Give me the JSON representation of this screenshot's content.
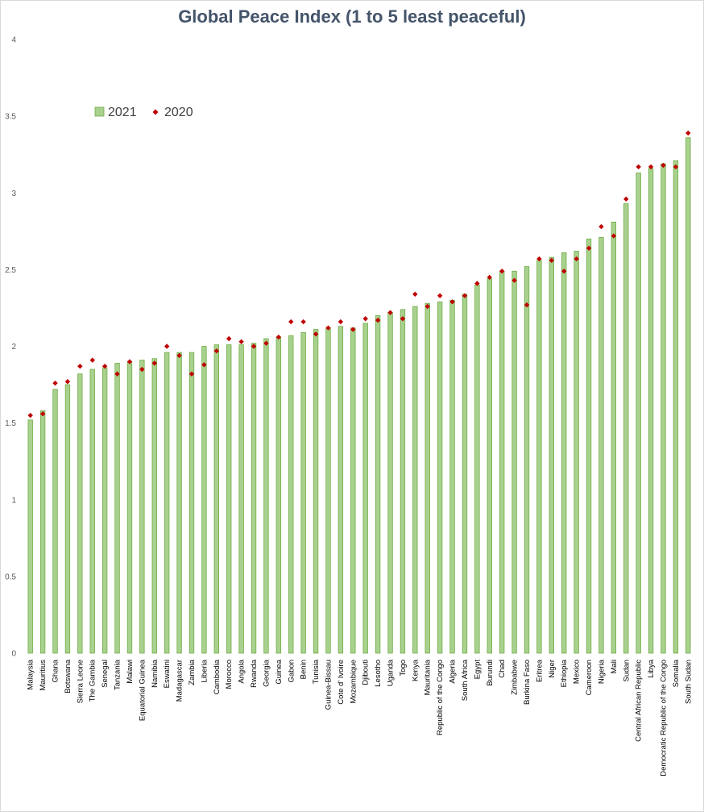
{
  "chart_data": {
    "type": "bar",
    "title": "Global Peace Index (1 to 5 least peaceful)",
    "xlabel": "",
    "ylabel": "",
    "ylim": [
      0,
      4
    ],
    "yticks": [
      "0",
      "0.5",
      "1",
      "1.5",
      "2",
      "2.5",
      "3",
      "3.5",
      "4"
    ],
    "grid": false,
    "legend_position": "top-left",
    "colors": {
      "bar_fill": "#a9d18e",
      "bar_stroke": "#70ad47",
      "marker": "#c00000"
    },
    "categories": [
      "Malaysia",
      "Mauritius",
      "Ghana",
      "Botswana",
      "Sierra Leone",
      "The Gambia",
      "Senegal",
      "Tanzania",
      "Malawi",
      "Equatorial Guinea",
      "Namibia",
      "Eswatini",
      "Madagascar",
      "Zambia",
      "Liberia",
      "Cambodia",
      "Morocco",
      "Angola",
      "Rwanda",
      "Georgia",
      "Guinea",
      "Gabon",
      "Benin",
      "Tunisia",
      "Guinea-Bissau",
      "Cote d' Ivoire",
      "Mozambique",
      "Djibouti",
      "Lesotho",
      "Uganda",
      "Togo",
      "Kenya",
      "Mauritania",
      "Republic of the Congo",
      "Algeria",
      "South Africa",
      "Egypt",
      "Burundi",
      "Chad",
      "Zimbabwe",
      "Burkina Faso",
      "Eritrea",
      "Niger",
      "Ethiopia",
      "Mexico",
      "Cameroon",
      "Nigeria",
      "Mali",
      "Sudan",
      "Central African Republic",
      "Libya",
      "Democratic Republic of the Congo",
      "Somalia",
      "South Sudan"
    ],
    "series": [
      {
        "name": "2021",
        "kind": "bar",
        "values": [
          1.52,
          1.58,
          1.72,
          1.75,
          1.82,
          1.85,
          1.86,
          1.89,
          1.9,
          1.91,
          1.92,
          1.96,
          1.96,
          1.96,
          2.0,
          2.01,
          2.01,
          2.01,
          2.02,
          2.05,
          2.06,
          2.07,
          2.09,
          2.11,
          2.12,
          2.13,
          2.12,
          2.15,
          2.2,
          2.22,
          2.24,
          2.26,
          2.28,
          2.29,
          2.3,
          2.34,
          2.4,
          2.44,
          2.49,
          2.49,
          2.52,
          2.56,
          2.58,
          2.61,
          2.62,
          2.7,
          2.71,
          2.81,
          2.93,
          3.13,
          3.16,
          3.19,
          3.21,
          3.36
        ]
      },
      {
        "name": "2020",
        "kind": "marker",
        "values": [
          1.55,
          1.56,
          1.76,
          1.77,
          1.87,
          1.91,
          1.87,
          1.82,
          1.9,
          1.85,
          1.89,
          2.0,
          1.94,
          1.82,
          1.88,
          1.97,
          2.05,
          2.03,
          2.0,
          2.02,
          2.06,
          2.16,
          2.16,
          2.08,
          2.12,
          2.16,
          2.11,
          2.18,
          2.17,
          2.22,
          2.18,
          2.34,
          2.26,
          2.33,
          2.29,
          2.33,
          2.41,
          2.45,
          2.49,
          2.43,
          2.27,
          2.57,
          2.56,
          2.49,
          2.57,
          2.64,
          2.78,
          2.72,
          2.96,
          3.17,
          3.17,
          3.18,
          3.17,
          3.39
        ]
      }
    ]
  }
}
